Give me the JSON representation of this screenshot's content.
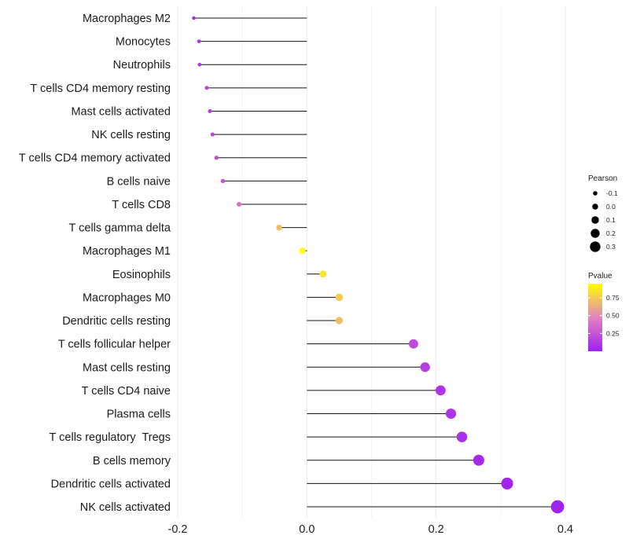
{
  "chart_data": {
    "type": "lollipop",
    "title": "",
    "xlabel": "",
    "ylabel": "",
    "xlim": [
      -0.2,
      0.4
    ],
    "x_ticks": [
      -0.2,
      0.0,
      0.2,
      0.4
    ],
    "x_tick_labels": [
      "-0.2",
      "0.0",
      "0.2",
      "0.4"
    ],
    "grid": true,
    "categories": [
      "Macrophages M2",
      "Monocytes",
      "Neutrophils",
      "T cells CD4 memory resting",
      "Mast cells activated",
      "NK cells resting",
      "T cells CD4 memory activated",
      "B cells naive",
      "T cells CD8",
      "T cells gamma delta",
      "Macrophages M1",
      "Eosinophils",
      "Macrophages M0",
      "Dendritic cells resting",
      "T cells follicular helper",
      "Mast cells resting",
      "T cells CD4 naive",
      "Plasma cells",
      "T cells regulatory  Tregs",
      "B cells memory",
      "Dendritic cells activated",
      "NK cells activated"
    ],
    "pearson": [
      -0.175,
      -0.167,
      -0.166,
      -0.155,
      -0.15,
      -0.146,
      -0.14,
      -0.13,
      -0.105,
      -0.043,
      -0.007,
      0.025,
      0.05,
      0.05,
      0.165,
      0.183,
      0.207,
      0.223,
      0.24,
      0.266,
      0.31,
      0.388
    ],
    "pvalue": [
      0.05,
      0.1,
      0.1,
      0.15,
      0.15,
      0.18,
      0.2,
      0.25,
      0.4,
      0.7,
      0.95,
      0.85,
      0.75,
      0.7,
      0.2,
      0.15,
      0.1,
      0.1,
      0.08,
      0.05,
      0.02,
      0.01
    ],
    "legend": {
      "size": {
        "title": "Pearson",
        "labels": [
          "-0.1",
          "0.0",
          "0.1",
          "0.2",
          "0.3"
        ],
        "values": [
          -0.1,
          0.0,
          0.1,
          0.2,
          0.3
        ]
      },
      "color": {
        "title": "Pvalue",
        "labels": [
          "0.75",
          "0.50",
          "0.25"
        ],
        "values": [
          0.75,
          0.5,
          0.25
        ],
        "range": [
          0.0,
          0.95
        ],
        "low_color": "#a020f0",
        "mid_color": "#e383c0",
        "high_color": "#ffff00"
      },
      "position": "right"
    }
  }
}
